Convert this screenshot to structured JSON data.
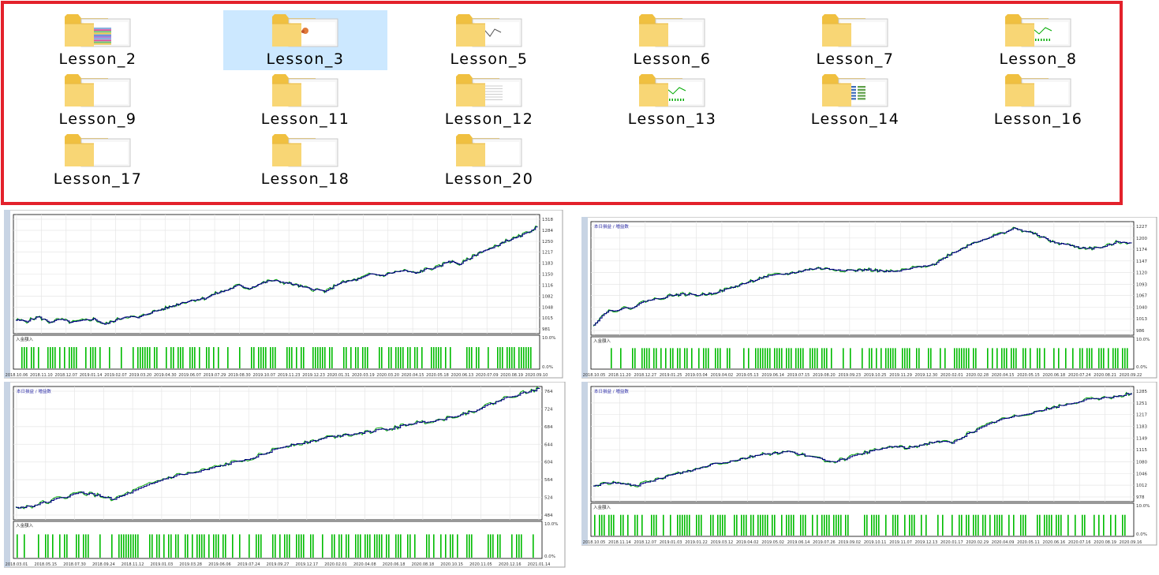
{
  "folders": [
    {
      "name": "Lesson_2",
      "selected": false,
      "thumb": "colorful"
    },
    {
      "name": "Lesson_3",
      "selected": true,
      "thumb": "small-image"
    },
    {
      "name": "Lesson_5",
      "selected": false,
      "thumb": "chart"
    },
    {
      "name": "Lesson_6",
      "selected": false,
      "thumb": "blank"
    },
    {
      "name": "Lesson_7",
      "selected": false,
      "thumb": "blank"
    },
    {
      "name": "Lesson_8",
      "selected": false,
      "thumb": "green-chart"
    },
    {
      "name": "Lesson_9",
      "selected": false,
      "thumb": "blank"
    },
    {
      "name": "Lesson_11",
      "selected": false,
      "thumb": "blank"
    },
    {
      "name": "Lesson_12",
      "selected": false,
      "thumb": "table"
    },
    {
      "name": "Lesson_13",
      "selected": false,
      "thumb": "green-chart"
    },
    {
      "name": "Lesson_14",
      "selected": false,
      "thumb": "blue-table"
    },
    {
      "name": "Lesson_16",
      "selected": false,
      "thumb": "blank"
    },
    {
      "name": "Lesson_17",
      "selected": false,
      "thumb": "blank"
    },
    {
      "name": "Lesson_18",
      "selected": false,
      "thumb": "blank"
    },
    {
      "name": "Lesson_20",
      "selected": false,
      "thumb": "blank"
    }
  ],
  "colors": {
    "border": "#e3212b",
    "selection": "#cce8ff",
    "equity": "#000080",
    "price": "#00aa00",
    "bars": "#00bb00",
    "grid": "#e6e6e6"
  },
  "chart_data": [
    {
      "type": "line",
      "legend": "",
      "y_ticks": [
        981,
        1015,
        1048,
        1082,
        1116,
        1150,
        1183,
        1217,
        1250,
        1284,
        1318
      ],
      "sub_label": "入金額入",
      "sub_ticks": [
        "10.0%",
        "0.0%"
      ],
      "x_ticks": [
        "2018.10.06",
        "2018.11.10",
        "2018.12.07",
        "2019.01.14",
        "2019.02.07",
        "2019.03.20",
        "2019.04.30",
        "2019.06.07",
        "2019.07.29",
        "2019.08.30",
        "2019.10.07",
        "2019.11.23",
        "2019.12.23",
        "2020.01.31",
        "2020.03.19",
        "2020.03.20",
        "2020.04.15",
        "2020.05.18",
        "2020.06.13",
        "2020.07.09",
        "2020.08.19",
        "2020.09.10"
      ],
      "series": [
        {
          "values": [
            1008,
            1005,
            1018,
            1002,
            1010,
            1001,
            1006,
            1012,
            995,
            1008,
            1020,
            1015,
            1030,
            1040,
            1050,
            1062,
            1070,
            1075,
            1090,
            1100,
            1115,
            1105,
            1120,
            1130,
            1125,
            1118,
            1108,
            1102,
            1096,
            1120,
            1128,
            1135,
            1150,
            1145,
            1155,
            1160,
            1152,
            1165,
            1170,
            1190,
            1180,
            1200,
            1220,
            1230,
            1250,
            1260,
            1275,
            1296
          ]
        }
      ]
    },
    {
      "type": "line",
      "legend": "本日損益 / 増益数",
      "y_ticks": [
        986,
        1013,
        1040,
        1067,
        1093,
        1120,
        1147,
        1174,
        1200,
        1227
      ],
      "sub_label": "入金額入",
      "sub_ticks": [
        "10.0%",
        "0.0%"
      ],
      "x_ticks": [
        "2018.10.05",
        "2018.11.20",
        "2018.12.27",
        "2019.01.25",
        "2019.03.04",
        "2019.04.02",
        "2019.05.13",
        "2019.06.14",
        "2019.07.15",
        "2019.08.20",
        "2019.09.23",
        "2019.10.25",
        "2019.11.29",
        "2019.12.30",
        "2020.02.01",
        "2020.02.28",
        "2020.04.15",
        "2020.05.15",
        "2020.06.18",
        "2020.07.24",
        "2020.08.21",
        "2020.09.22"
      ],
      "series": [
        {
          "values": [
            1000,
            1030,
            1035,
            1040,
            1055,
            1060,
            1068,
            1070,
            1068,
            1072,
            1080,
            1090,
            1100,
            1110,
            1115,
            1118,
            1125,
            1130,
            1128,
            1126,
            1125,
            1127,
            1123,
            1122,
            1128,
            1135,
            1140,
            1160,
            1175,
            1190,
            1200,
            1210,
            1222,
            1215,
            1205,
            1190,
            1185,
            1178,
            1176,
            1180,
            1192,
            1188
          ]
        }
      ]
    },
    {
      "type": "line",
      "legend": "本日損益 / 増益数",
      "y_ticks": [
        484,
        524,
        564,
        604,
        644,
        684,
        724,
        764
      ],
      "sub_label": "入金額入",
      "sub_ticks": [
        "10.0%",
        "0.0%"
      ],
      "x_ticks": [
        "2018.03.01",
        "2018.05.15",
        "2018.07.30",
        "2018.09.24",
        "2018.11.12",
        "2019.01.03",
        "2019.03.28",
        "2019.06.06",
        "2019.07.24",
        "2019.09.27",
        "2019.12.17",
        "2020.02.01",
        "2020.04.08",
        "2020.06.18",
        "2020.08.18",
        "2020.10.15",
        "2020.11.05",
        "2020.12.16",
        "2021.01.14"
      ],
      "series": [
        {
          "values": [
            500,
            505,
            515,
            525,
            535,
            528,
            520,
            535,
            550,
            565,
            575,
            580,
            590,
            600,
            610,
            620,
            635,
            645,
            650,
            660,
            665,
            670,
            675,
            680,
            690,
            695,
            700,
            710,
            720,
            735,
            750,
            760,
            770
          ]
        }
      ]
    },
    {
      "type": "line",
      "legend": "本日損益 / 増益数",
      "y_ticks": [
        978,
        1012,
        1046,
        1080,
        1115,
        1149,
        1183,
        1217,
        1251,
        1285
      ],
      "sub_label": "入金額入",
      "sub_ticks": [
        "10.0%",
        "0.0%"
      ],
      "x_ticks": [
        "2018.10.05",
        "2018.11.14",
        "2018.12.07",
        "2019.01.03",
        "2019.01.22",
        "2019.03.12",
        "2019.04.02",
        "2019.05.02",
        "2019.06.14",
        "2019.07.26",
        "2019.09.02",
        "2019.10.11",
        "2019.11.07",
        "2019.12.13",
        "2020.01.17",
        "2020.02.29",
        "2020.04.09",
        "2020.05.11",
        "2020.06.16",
        "2020.07.16",
        "2020.08.19",
        "2020.09.16"
      ],
      "series": [
        {
          "values": [
            1010,
            1020,
            1015,
            1012,
            1025,
            1040,
            1050,
            1060,
            1075,
            1080,
            1090,
            1100,
            1105,
            1110,
            1100,
            1090,
            1080,
            1090,
            1105,
            1115,
            1125,
            1120,
            1130,
            1140,
            1135,
            1160,
            1180,
            1200,
            1210,
            1220,
            1230,
            1240,
            1250,
            1260,
            1265,
            1270,
            1280
          ]
        }
      ]
    }
  ]
}
